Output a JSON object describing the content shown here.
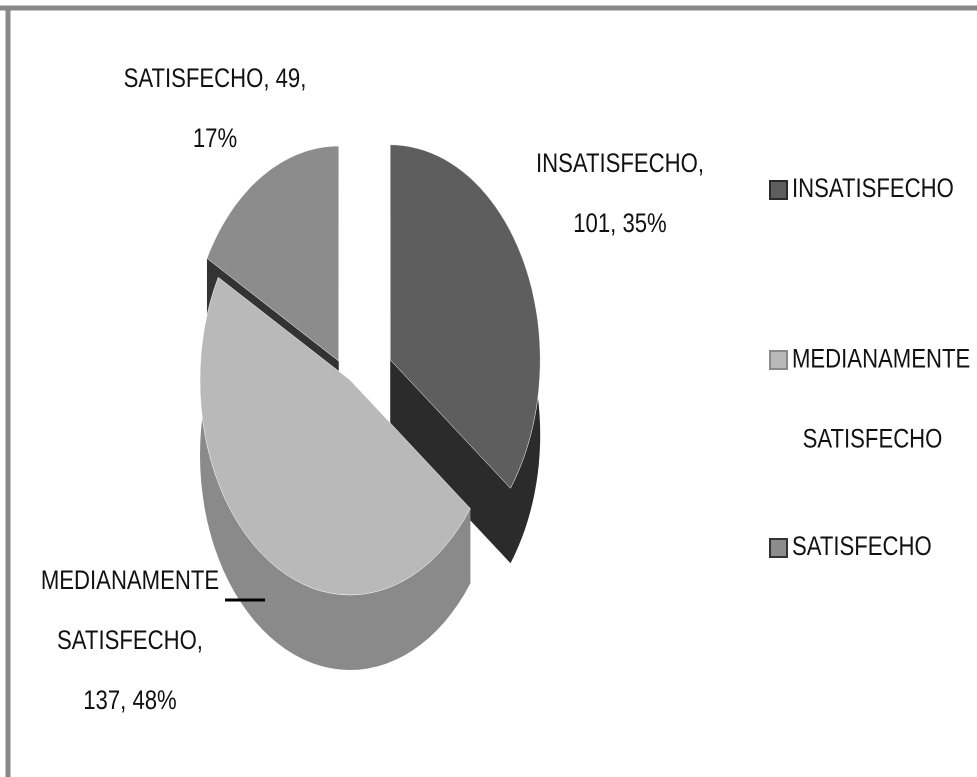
{
  "chart_data": {
    "type": "pie3d",
    "categories": [
      "INSATISFECHO",
      "MEDIANAMENTE SATISFECHO",
      "SATISFECHO"
    ],
    "values": [
      101,
      137,
      49
    ],
    "percentages": [
      35,
      48,
      17
    ],
    "value_labels": [
      [
        "INSATISFECHO,",
        "101, 35%"
      ],
      [
        "MEDIANAMENTE",
        "SATISFECHO,",
        "137, 48%"
      ],
      [
        "SATISFECHO, 49,",
        "17%"
      ]
    ],
    "colors": [
      "#5e5e5e",
      "#b9b9b9",
      "#8c8c8c"
    ],
    "side_colors": [
      "#2b2b2b",
      "#8a8a8a",
      "#333333"
    ],
    "legend": "right"
  }
}
